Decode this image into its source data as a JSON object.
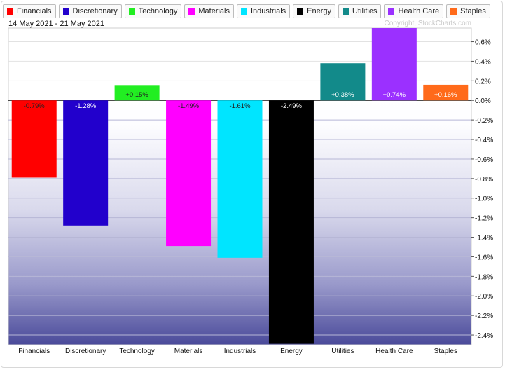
{
  "legend": [
    {
      "label": "Financials",
      "color": "#ff0000"
    },
    {
      "label": "Discretionary",
      "color": "#2200cc"
    },
    {
      "label": "Technology",
      "color": "#22ee22"
    },
    {
      "label": "Materials",
      "color": "#ff00ff"
    },
    {
      "label": "Industrials",
      "color": "#00e5ff"
    },
    {
      "label": "Energy",
      "color": "#000000"
    },
    {
      "label": "Utilities",
      "color": "#128a8a"
    },
    {
      "label": "Health Care",
      "color": "#9b30ff"
    },
    {
      "label": "Staples",
      "color": "#ff6a1a"
    }
  ],
  "header": {
    "date_range": "14 May 2021 - 21 May 2021",
    "copyright": "Copyright, StockCharts.com"
  },
  "chart_data": {
    "type": "bar",
    "categories": [
      "Financials",
      "Discretionary",
      "Technology",
      "Materials",
      "Industrials",
      "Energy",
      "Utilities",
      "Health Care",
      "Staples"
    ],
    "values": [
      -0.79,
      -1.28,
      0.15,
      -1.49,
      -1.61,
      -2.49,
      0.38,
      0.74,
      0.16
    ],
    "data_labels": [
      "-0.79%",
      "-1.28%",
      "+0.15%",
      "-1.49%",
      "-1.61%",
      "-2.49%",
      "+0.38%",
      "+0.74%",
      "+0.16%"
    ],
    "colors": [
      "#ff0000",
      "#2200cc",
      "#22ee22",
      "#ff00ff",
      "#00e5ff",
      "#000000",
      "#128a8a",
      "#9b30ff",
      "#ff6a1a"
    ],
    "label_colors": [
      "#222222",
      "#ffffff",
      "#222222",
      "#222222",
      "#222222",
      "#ffffff",
      "#ffffff",
      "#ffffff",
      "#ffffff"
    ],
    "ylim": [
      -2.5,
      0.75
    ],
    "y_ticks": [
      0.6,
      0.4,
      0.2,
      0.0,
      -0.2,
      -0.4,
      -0.6,
      -0.8,
      -1.0,
      -1.2,
      -1.4,
      -1.6,
      -1.8,
      -2.0,
      -2.2,
      -2.4
    ],
    "y_tick_labels": [
      "0.6%",
      "0.4%",
      "0.2%",
      "0.0%",
      "-0.2%",
      "-0.4%",
      "-0.6%",
      "-0.8%",
      "-1.0%",
      "-1.2%",
      "-1.4%",
      "-1.6%",
      "-1.8%",
      "-2.0%",
      "-2.2%",
      "-2.4%"
    ],
    "title": "",
    "xlabel": "",
    "ylabel": "",
    "grid": true,
    "y_axis_side": "right",
    "legend_position": "top-left"
  }
}
